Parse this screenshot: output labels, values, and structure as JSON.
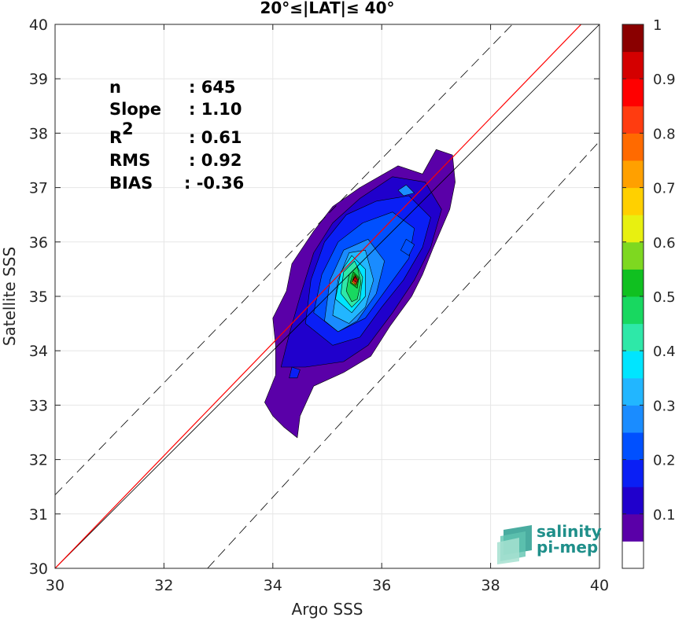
{
  "chart_data": {
    "type": "heatmap",
    "subtype": "filled-contour density scatter",
    "title": "20°≤|LAT|≤ 40°",
    "xlabel": "Argo SSS",
    "ylabel": "Satellite SSS",
    "xlim": [
      30,
      40
    ],
    "ylim": [
      30,
      40
    ],
    "xticks": [
      30,
      32,
      34,
      36,
      38,
      40
    ],
    "yticks": [
      30,
      31,
      32,
      33,
      34,
      35,
      36,
      37,
      38,
      39,
      40
    ],
    "grid": true,
    "stats": [
      {
        "label": "n",
        "value": ": 645"
      },
      {
        "label": "Slope",
        "value": ": 1.10"
      },
      {
        "label": "R",
        "sup": "2",
        "value": ": 0.61"
      },
      {
        "label": "RMS",
        "value": ": 0.92"
      },
      {
        "label": "BIAS",
        "value": ": -0.36"
      }
    ],
    "lines": [
      {
        "kind": "identity",
        "color": "#000000",
        "style": "solid",
        "points": [
          [
            30,
            30
          ],
          [
            40,
            40
          ]
        ]
      },
      {
        "kind": "upper-bound",
        "color": "#000000",
        "style": "dashed",
        "points": [
          [
            30,
            31.35
          ],
          [
            38.4,
            40
          ]
        ]
      },
      {
        "kind": "lower-bound",
        "color": "#000000",
        "style": "dashed",
        "points": [
          [
            32.8,
            30
          ],
          [
            40,
            37.85
          ]
        ]
      },
      {
        "kind": "regression",
        "color": "#ff0000",
        "style": "solid",
        "points": [
          [
            30,
            30
          ],
          [
            40,
            40.35
          ]
        ]
      }
    ],
    "colorbar": {
      "min": 0,
      "max": 1,
      "ticks": [
        0.1,
        0.2,
        0.3,
        0.4,
        0.5,
        0.6,
        0.7,
        0.8,
        0.9,
        1
      ],
      "tick_labels": [
        "0.1",
        "0.2",
        "0.3",
        "0.4",
        "0.5",
        "0.6",
        "0.7",
        "0.8",
        "0.9",
        "1"
      ],
      "levels": [
        "#ffffff",
        "#5a00a8",
        "#2000cc",
        "#0a1ff5",
        "#0050ff",
        "#1a8cff",
        "#22b6ff",
        "#00e5ff",
        "#2ee8a8",
        "#18d860",
        "#10c020",
        "#7ed820",
        "#e8f010",
        "#ffd000",
        "#ffa000",
        "#ff6a00",
        "#ff3c10",
        "#ff0000",
        "#d40000",
        "#8a0000"
      ]
    },
    "contours": [
      {
        "level": 1,
        "points": [
          [
            34.0,
            32.8
          ],
          [
            33.85,
            33.05
          ],
          [
            34.05,
            33.55
          ],
          [
            34.05,
            34.1
          ],
          [
            34.0,
            34.6
          ],
          [
            34.25,
            35.1
          ],
          [
            34.35,
            35.6
          ],
          [
            34.75,
            36.2
          ],
          [
            35.1,
            36.65
          ],
          [
            35.6,
            37.0
          ],
          [
            36.3,
            37.4
          ],
          [
            36.75,
            37.25
          ],
          [
            37.0,
            37.7
          ],
          [
            37.3,
            37.6
          ],
          [
            37.35,
            37.1
          ],
          [
            37.25,
            36.6
          ],
          [
            36.95,
            35.9
          ],
          [
            36.75,
            35.4
          ],
          [
            36.55,
            35.0
          ],
          [
            36.15,
            34.45
          ],
          [
            35.8,
            33.9
          ],
          [
            35.3,
            33.6
          ],
          [
            34.75,
            33.35
          ],
          [
            34.5,
            32.8
          ],
          [
            34.45,
            32.4
          ],
          [
            34.2,
            32.6
          ]
        ]
      },
      {
        "level": 2,
        "points": [
          [
            34.15,
            33.7
          ],
          [
            34.3,
            34.3
          ],
          [
            34.5,
            35.0
          ],
          [
            34.75,
            35.8
          ],
          [
            35.1,
            36.35
          ],
          [
            35.6,
            36.8
          ],
          [
            36.2,
            37.2
          ],
          [
            36.8,
            37.1
          ],
          [
            37.1,
            36.6
          ],
          [
            36.9,
            35.9
          ],
          [
            36.6,
            35.3
          ],
          [
            36.2,
            34.7
          ],
          [
            35.75,
            34.1
          ],
          [
            35.3,
            33.8
          ],
          [
            34.6,
            33.7
          ]
        ]
      },
      {
        "level": 3,
        "points": [
          [
            34.6,
            34.5
          ],
          [
            34.7,
            35.3
          ],
          [
            34.95,
            36.0
          ],
          [
            35.35,
            36.5
          ],
          [
            35.9,
            36.75
          ],
          [
            36.5,
            36.85
          ],
          [
            36.9,
            36.45
          ],
          [
            36.75,
            35.9
          ],
          [
            36.4,
            35.3
          ],
          [
            36.0,
            34.8
          ],
          [
            35.6,
            34.25
          ],
          [
            35.1,
            34.1
          ]
        ]
      },
      {
        "level": 4,
        "points": [
          [
            34.75,
            34.7
          ],
          [
            34.9,
            35.4
          ],
          [
            35.2,
            36.0
          ],
          [
            35.65,
            36.35
          ],
          [
            36.2,
            36.55
          ],
          [
            36.6,
            36.25
          ],
          [
            36.5,
            35.7
          ],
          [
            36.1,
            35.15
          ],
          [
            35.7,
            34.6
          ],
          [
            35.2,
            34.35
          ]
        ]
      },
      {
        "level": 5,
        "points": [
          [
            34.95,
            34.55
          ],
          [
            35.05,
            35.3
          ],
          [
            35.3,
            35.85
          ],
          [
            35.75,
            36.05
          ],
          [
            36.05,
            35.65
          ],
          [
            35.9,
            35.05
          ],
          [
            35.55,
            34.55
          ],
          [
            35.2,
            34.35
          ]
        ]
      },
      {
        "level": 6,
        "points": [
          [
            35.1,
            34.65
          ],
          [
            35.2,
            35.3
          ],
          [
            35.4,
            35.8
          ],
          [
            35.7,
            35.85
          ],
          [
            35.85,
            35.3
          ],
          [
            35.7,
            34.8
          ],
          [
            35.4,
            34.5
          ]
        ]
      },
      {
        "level": 7,
        "points": [
          [
            35.15,
            34.95
          ],
          [
            35.25,
            35.45
          ],
          [
            35.45,
            35.75
          ],
          [
            35.7,
            35.5
          ],
          [
            35.7,
            35.0
          ],
          [
            35.45,
            34.7
          ]
        ]
      },
      {
        "level": 8,
        "points": [
          [
            35.25,
            35.05
          ],
          [
            35.3,
            35.45
          ],
          [
            35.5,
            35.65
          ],
          [
            35.65,
            35.35
          ],
          [
            35.6,
            34.95
          ],
          [
            35.45,
            34.8
          ]
        ]
      },
      {
        "level": 9,
        "points": [
          [
            35.35,
            35.1
          ],
          [
            35.4,
            35.4
          ],
          [
            35.55,
            35.55
          ],
          [
            35.62,
            35.25
          ],
          [
            35.55,
            34.95
          ],
          [
            35.45,
            34.9
          ]
        ]
      },
      {
        "level": 10,
        "points": [
          [
            35.42,
            35.25
          ],
          [
            35.48,
            35.45
          ],
          [
            35.58,
            35.35
          ],
          [
            35.55,
            35.15
          ]
        ]
      },
      {
        "level": 13,
        "points": [
          [
            35.45,
            35.25
          ],
          [
            35.5,
            35.4
          ],
          [
            35.57,
            35.32
          ],
          [
            35.53,
            35.2
          ]
        ]
      },
      {
        "level": 16,
        "points": [
          [
            35.46,
            35.28
          ],
          [
            35.51,
            35.38
          ],
          [
            35.56,
            35.3
          ],
          [
            35.52,
            35.22
          ]
        ]
      },
      {
        "level": 18,
        "points": [
          [
            35.48,
            35.3
          ],
          [
            35.51,
            35.36
          ],
          [
            35.54,
            35.31
          ],
          [
            35.52,
            35.26
          ]
        ]
      },
      {
        "level": 4,
        "points": [
          [
            36.35,
            35.85
          ],
          [
            36.45,
            36.05
          ],
          [
            36.6,
            35.95
          ],
          [
            36.5,
            35.75
          ]
        ]
      },
      {
        "level": 5,
        "points": [
          [
            36.3,
            36.95
          ],
          [
            36.45,
            37.05
          ],
          [
            36.6,
            36.9
          ],
          [
            36.4,
            36.85
          ]
        ]
      },
      {
        "level": 3,
        "points": [
          [
            34.3,
            33.5
          ],
          [
            34.35,
            33.7
          ],
          [
            34.5,
            33.65
          ],
          [
            34.45,
            33.5
          ]
        ]
      }
    ]
  },
  "logo": {
    "line1": "salinity",
    "line2": "pi-mep"
  }
}
